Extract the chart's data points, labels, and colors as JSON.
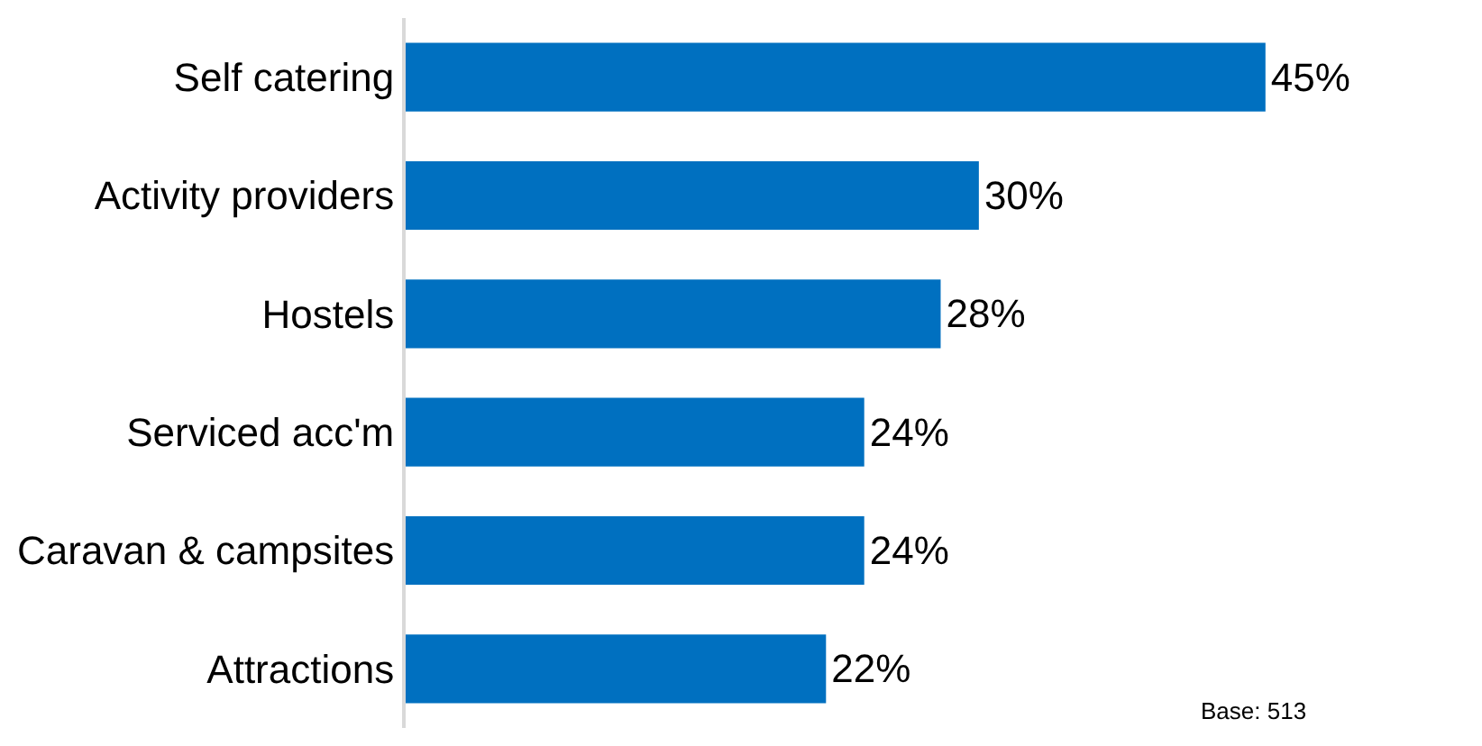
{
  "chart_data": {
    "type": "bar",
    "orientation": "horizontal",
    "categories": [
      "Self catering",
      "Activity providers",
      "Hostels",
      "Serviced acc'm",
      "Caravan & campsites",
      "Attractions"
    ],
    "values": [
      45,
      30,
      28,
      24,
      24,
      22
    ],
    "color": "#0070c0",
    "value_labels": [
      "45%",
      "30%",
      "28%",
      "24%",
      "24%",
      "22%"
    ],
    "annotations": [
      "Base: 513"
    ]
  }
}
